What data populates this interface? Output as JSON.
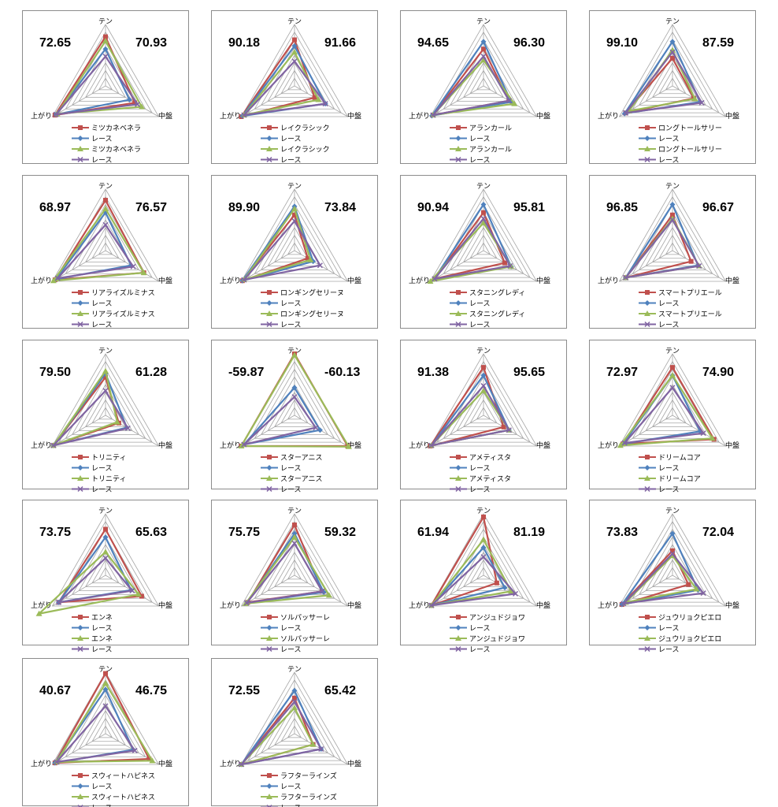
{
  "colors": {
    "horse_a": "#c0504d",
    "race_a": "#4f81bd",
    "horse_b": "#9bbb59",
    "race_b": "#8064a2",
    "grid": "#a6a6a6",
    "border": "#8c8c8c"
  },
  "axes": [
    "テン",
    "中盤",
    "上がり"
  ],
  "chart_data": [
    {
      "type": "radar",
      "left_score": "72.65",
      "right_score": "70.93",
      "axes": [
        "テン",
        "中盤",
        "上がり"
      ],
      "series": [
        {
          "name": "ミツカネベネラ",
          "values": [
            80,
            55,
            95
          ]
        },
        {
          "name": "レース",
          "values": [
            60,
            45,
            93
          ]
        },
        {
          "name": "ミツカネベネラ",
          "values": [
            73,
            68,
            91
          ]
        },
        {
          "name": "レース",
          "values": [
            48,
            60,
            93
          ]
        }
      ]
    },
    {
      "type": "radar",
      "left_score": "90.18",
      "right_score": "91.66",
      "axes": [
        "テン",
        "中盤",
        "上がり"
      ],
      "series": [
        {
          "name": "レイクラシック",
          "values": [
            75,
            38,
            100
          ]
        },
        {
          "name": "レース",
          "values": [
            65,
            58,
            98
          ]
        },
        {
          "name": "レイクラシック",
          "values": [
            55,
            45,
            95
          ]
        },
        {
          "name": "レース",
          "values": [
            40,
            58,
            95
          ]
        }
      ]
    },
    {
      "type": "radar",
      "left_score": "94.65",
      "right_score": "96.30",
      "axes": [
        "テン",
        "中盤",
        "上がり"
      ],
      "series": [
        {
          "name": "アランカール",
          "values": [
            60,
            48,
            95
          ]
        },
        {
          "name": "レース",
          "values": [
            72,
            52,
            97
          ]
        },
        {
          "name": "アランカール",
          "values": [
            42,
            58,
            95
          ]
        },
        {
          "name": "レース",
          "values": [
            48,
            48,
            95
          ]
        }
      ]
    },
    {
      "type": "radar",
      "left_score": "99.10",
      "right_score": "87.59",
      "axes": [
        "テン",
        "中盤",
        "上がり"
      ],
      "series": [
        {
          "name": "ロングトールサリー",
          "values": [
            45,
            40,
            88
          ]
        },
        {
          "name": "レース",
          "values": [
            72,
            52,
            90
          ]
        },
        {
          "name": "ロングトールサリー",
          "values": [
            58,
            42,
            82
          ]
        },
        {
          "name": "レース",
          "values": [
            55,
            55,
            88
          ]
        }
      ]
    },
    {
      "type": "radar",
      "left_score": "68.97",
      "right_score": "76.57",
      "axes": [
        "テン",
        "中盤",
        "上がり"
      ],
      "series": [
        {
          "name": "リアライズルミナス",
          "values": [
            82,
            72,
            95
          ]
        },
        {
          "name": "レース",
          "values": [
            62,
            48,
            93
          ]
        },
        {
          "name": "リアライズルミナス",
          "values": [
            68,
            72,
            98
          ]
        },
        {
          "name": "レース",
          "values": [
            42,
            52,
            90
          ]
        }
      ]
    },
    {
      "type": "radar",
      "left_score": "89.90",
      "right_score": "73.84",
      "axes": [
        "テン",
        "中盤",
        "上がり"
      ],
      "series": [
        {
          "name": "ロンギングセリーヌ",
          "values": [
            58,
            25,
            98
          ]
        },
        {
          "name": "レース",
          "values": [
            72,
            35,
            98
          ]
        },
        {
          "name": "ロンギングセリーヌ",
          "values": [
            68,
            30,
            95
          ]
        },
        {
          "name": "レース",
          "values": [
            48,
            48,
            95
          ]
        }
      ]
    },
    {
      "type": "radar",
      "left_score": "90.94",
      "right_score": "95.81",
      "axes": [
        "テン",
        "中盤",
        "上がり"
      ],
      "series": [
        {
          "name": "スタニングレディ",
          "values": [
            62,
            40,
            92
          ]
        },
        {
          "name": "レース",
          "values": [
            75,
            52,
            93
          ]
        },
        {
          "name": "スタニングレディ",
          "values": [
            45,
            52,
            100
          ]
        },
        {
          "name": "レース",
          "values": [
            52,
            50,
            92
          ]
        }
      ]
    },
    {
      "type": "radar",
      "left_score": "96.85",
      "right_score": "96.67",
      "axes": [
        "テン",
        "中盤",
        "上がり"
      ],
      "series": [
        {
          "name": "スマートプリエール",
          "values": [
            58,
            35,
            88
          ]
        },
        {
          "name": "レース",
          "values": [
            75,
            48,
            88
          ]
        },
        {
          "name": "スマートプリエール",
          "values": [
            52,
            50,
            88
          ]
        },
        {
          "name": "レース",
          "values": [
            50,
            50,
            88
          ]
        }
      ]
    },
    {
      "type": "radar",
      "left_score": "79.50",
      "right_score": "61.28",
      "axes": [
        "テン",
        "中盤",
        "上がり"
      ],
      "series": [
        {
          "name": "トリニティ",
          "values": [
            62,
            25,
            98
          ]
        },
        {
          "name": "レース",
          "values": [
            68,
            40,
            98
          ]
        },
        {
          "name": "トリニティ",
          "values": [
            72,
            22,
            98
          ]
        },
        {
          "name": "レース",
          "values": [
            40,
            42,
            98
          ]
        }
      ]
    },
    {
      "type": "radar",
      "left_score": "-59.87",
      "right_score": "-60.13",
      "axes": [
        "テン",
        "中盤",
        "上がり"
      ],
      "series": [
        {
          "name": "スターアニス",
          "values": [
            100,
            100,
            100
          ]
        },
        {
          "name": "レース",
          "values": [
            45,
            48,
            95
          ]
        },
        {
          "name": "スターアニス",
          "values": [
            98,
            102,
            100
          ]
        },
        {
          "name": "レース",
          "values": [
            30,
            40,
            95
          ]
        }
      ]
    },
    {
      "type": "radar",
      "left_score": "91.38",
      "right_score": "95.65",
      "axes": [
        "テン",
        "中盤",
        "上がり"
      ],
      "series": [
        {
          "name": "アメティスタ",
          "values": [
            78,
            38,
            100
          ]
        },
        {
          "name": "レース",
          "values": [
            65,
            48,
            98
          ]
        },
        {
          "name": "アメティスタ",
          "values": [
            40,
            48,
            98
          ]
        },
        {
          "name": "レース",
          "values": [
            48,
            48,
            98
          ]
        }
      ]
    },
    {
      "type": "radar",
      "left_score": "72.97",
      "right_score": "74.90",
      "axes": [
        "テン",
        "中盤",
        "上がり"
      ],
      "series": [
        {
          "name": "ドリームコア",
          "values": [
            78,
            78,
            93
          ]
        },
        {
          "name": "レース",
          "values": [
            65,
            52,
            93
          ]
        },
        {
          "name": "ドリームコア",
          "values": [
            65,
            75,
            98
          ]
        },
        {
          "name": "レース",
          "values": [
            45,
            58,
            90
          ]
        }
      ]
    },
    {
      "type": "radar",
      "left_score": "73.75",
      "right_score": "65.63",
      "axes": [
        "テン",
        "中盤",
        "上がり"
      ],
      "series": [
        {
          "name": "エンネ",
          "values": [
            75,
            68,
            88
          ]
        },
        {
          "name": "レース",
          "values": [
            62,
            48,
            88
          ]
        },
        {
          "name": "エンネ",
          "values": [
            38,
            62,
            125
          ]
        },
        {
          "name": "レース",
          "values": [
            28,
            50,
            88
          ]
        }
      ]
    },
    {
      "type": "radar",
      "left_score": "75.75",
      "right_score": "59.32",
      "axes": [
        "テン",
        "中盤",
        "上がり"
      ],
      "series": [
        {
          "name": "ソルパッサーレ",
          "values": [
            82,
            52,
            88
          ]
        },
        {
          "name": "レース",
          "values": [
            68,
            55,
            90
          ]
        },
        {
          "name": "ソルパッサーレ",
          "values": [
            62,
            65,
            92
          ]
        },
        {
          "name": "レース",
          "values": [
            52,
            52,
            90
          ]
        }
      ]
    },
    {
      "type": "radar",
      "left_score": "61.94",
      "right_score": "81.19",
      "axes": [
        "テン",
        "中盤",
        "上がり"
      ],
      "series": [
        {
          "name": "アンジュドジョワ",
          "values": [
            95,
            25,
            98
          ]
        },
        {
          "name": "レース",
          "values": [
            45,
            40,
            98
          ]
        },
        {
          "name": "アンジュドジョワ",
          "values": [
            58,
            52,
            98
          ]
        },
        {
          "name": "レース",
          "values": [
            30,
            60,
            98
          ]
        }
      ]
    },
    {
      "type": "radar",
      "left_score": "73.83",
      "right_score": "72.04",
      "axes": [
        "テン",
        "中盤",
        "上がり"
      ],
      "series": [
        {
          "name": "ジュウリョクピエロ",
          "values": [
            40,
            30,
            95
          ]
        },
        {
          "name": "レース",
          "values": [
            68,
            48,
            95
          ]
        },
        {
          "name": "ジュウリョクピエロ",
          "values": [
            32,
            45,
            88
          ]
        },
        {
          "name": "レース",
          "values": [
            35,
            58,
            92
          ]
        }
      ]
    },
    {
      "type": "radar",
      "left_score": "40.67",
      "right_score": "46.75",
      "axes": [
        "テン",
        "中盤",
        "上がり"
      ],
      "series": [
        {
          "name": "スウィートハピネス",
          "values": [
            98,
            82,
            95
          ]
        },
        {
          "name": "レース",
          "values": [
            72,
            52,
            95
          ]
        },
        {
          "name": "スウィートハピネス",
          "values": [
            82,
            88,
            92
          ]
        },
        {
          "name": "レース",
          "values": [
            45,
            55,
            92
          ]
        }
      ]
    },
    {
      "type": "radar",
      "left_score": "72.55",
      "right_score": "65.42",
      "axes": [
        "テン",
        "中盤",
        "上がり"
      ],
      "series": [
        {
          "name": "ラフターラインズ",
          "values": [
            58,
            35,
            100
          ]
        },
        {
          "name": "レース",
          "values": [
            70,
            50,
            100
          ]
        },
        {
          "name": "ラフターラインズ",
          "values": [
            42,
            35,
            100
          ]
        },
        {
          "name": "レース",
          "values": [
            52,
            50,
            100
          ]
        }
      ]
    }
  ]
}
